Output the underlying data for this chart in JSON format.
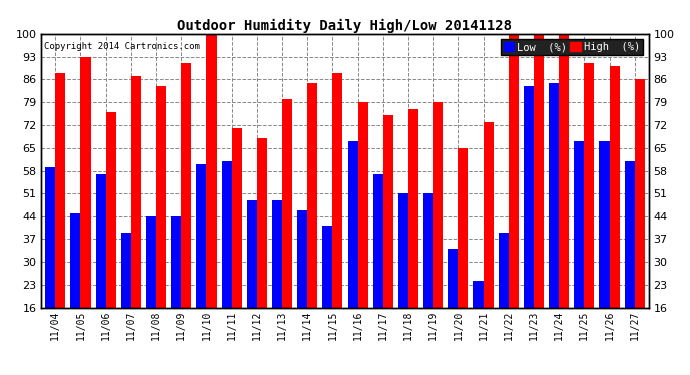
{
  "title": "Outdoor Humidity Daily High/Low 20141128",
  "copyright": "Copyright 2014 Cartronics.com",
  "dates": [
    "11/04",
    "11/05",
    "11/06",
    "11/07",
    "11/08",
    "11/09",
    "11/10",
    "11/11",
    "11/12",
    "11/13",
    "11/14",
    "11/15",
    "11/16",
    "11/17",
    "11/18",
    "11/19",
    "11/20",
    "11/21",
    "11/22",
    "11/23",
    "11/24",
    "11/25",
    "11/26",
    "11/27"
  ],
  "low_values": [
    59,
    45,
    57,
    39,
    44,
    44,
    60,
    61,
    49,
    49,
    46,
    41,
    67,
    57,
    51,
    51,
    34,
    24,
    39,
    84,
    85,
    67,
    67,
    61
  ],
  "high_values": [
    88,
    93,
    76,
    87,
    84,
    91,
    100,
    71,
    68,
    80,
    85,
    88,
    79,
    75,
    77,
    79,
    65,
    73,
    100,
    100,
    100,
    91,
    90,
    86
  ],
  "low_color": "#0000ff",
  "high_color": "#ff0000",
  "background_color": "#ffffff",
  "grid_color": "#888888",
  "yticks": [
    16,
    23,
    30,
    37,
    44,
    51,
    58,
    65,
    72,
    79,
    86,
    93,
    100
  ],
  "ymin": 16,
  "ymax": 100,
  "baseline": 16,
  "legend_low_label": "Low  (%)",
  "legend_high_label": "High  (%)"
}
